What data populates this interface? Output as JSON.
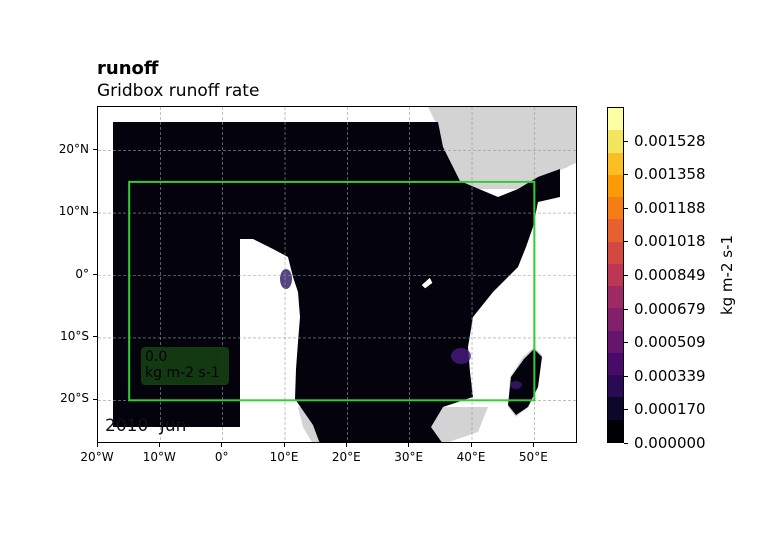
{
  "figure": {
    "title": "runoff",
    "subtitle": "Gridbox runoff rate",
    "date_label": "2010- Jun"
  },
  "map": {
    "lon_range": [
      -20,
      57
    ],
    "lat_range": [
      -27,
      27
    ],
    "x_ticks": [
      {
        "value": -20,
        "label": "20°W"
      },
      {
        "value": -10,
        "label": "10°W"
      },
      {
        "value": 0,
        "label": "0°"
      },
      {
        "value": 10,
        "label": "10°E"
      },
      {
        "value": 20,
        "label": "20°E"
      },
      {
        "value": 30,
        "label": "30°E"
      },
      {
        "value": 40,
        "label": "40°E"
      },
      {
        "value": 50,
        "label": "50°E"
      }
    ],
    "y_ticks": [
      {
        "value": 20,
        "label": "20°N"
      },
      {
        "value": 10,
        "label": "10°N"
      },
      {
        "value": 0,
        "label": "0°"
      },
      {
        "value": -10,
        "label": "10°S"
      },
      {
        "value": -20,
        "label": "20°S"
      }
    ],
    "data_extent": {
      "lon": [
        -18,
        3
      ],
      "lat": [
        -25,
        25
      ]
    },
    "region_box": {
      "lon": [
        -15,
        50
      ],
      "lat": [
        -20,
        15
      ],
      "color": "#33cc33"
    },
    "field_value": "0.0",
    "field_units": "kg m-2 s-1",
    "colors": {
      "land": "#d3d3d3",
      "ocean": "#ffffff",
      "field_base": "#03020d",
      "grid": "#999999"
    }
  },
  "colorbar": {
    "label": "kg m-2 s-1",
    "ticks": [
      "0.000000",
      "0.000170",
      "0.000339",
      "0.000509",
      "0.000679",
      "0.000849",
      "0.001018",
      "0.001188",
      "0.001358",
      "0.001528"
    ],
    "colors": [
      "#000004",
      "#0d0829",
      "#280b54",
      "#480b6a",
      "#65156e",
      "#82206c",
      "#9f2a63",
      "#bb3754",
      "#d44842",
      "#e8602d",
      "#f57d15",
      "#fb9b06",
      "#fbbe23",
      "#f3e55d",
      "#fcffa4"
    ]
  }
}
